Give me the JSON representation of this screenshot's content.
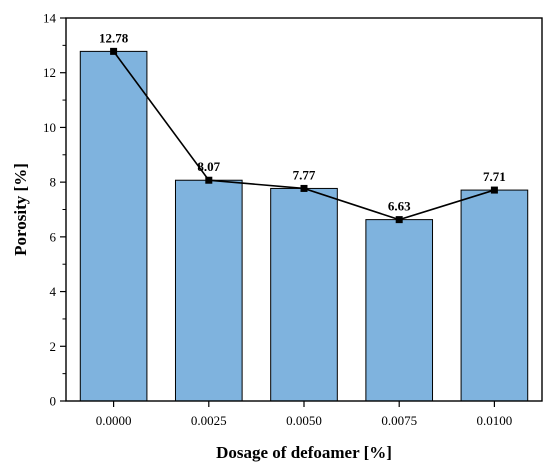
{
  "chart_data": {
    "type": "bar",
    "categories": [
      "0.0000",
      "0.0025",
      "0.0050",
      "0.0075",
      "0.0100"
    ],
    "values": [
      12.78,
      8.07,
      7.77,
      6.63,
      7.71
    ],
    "data_labels": [
      "12.78",
      "8.07",
      "7.77",
      "6.63",
      "7.71"
    ],
    "overlay": "line-with-square-markers",
    "xlabel": "Dosage of defoamer [%]",
    "ylabel": "Porosity [%]",
    "ylim": [
      0,
      14
    ],
    "yticks": [
      "0",
      "2",
      "4",
      "6",
      "8",
      "10",
      "12",
      "14"
    ],
    "grid": false,
    "legend": "none",
    "colors": {
      "bar_fill": "#7fb3de",
      "bar_stroke": "#000000",
      "line": "#000000",
      "marker": "#000000"
    }
  }
}
